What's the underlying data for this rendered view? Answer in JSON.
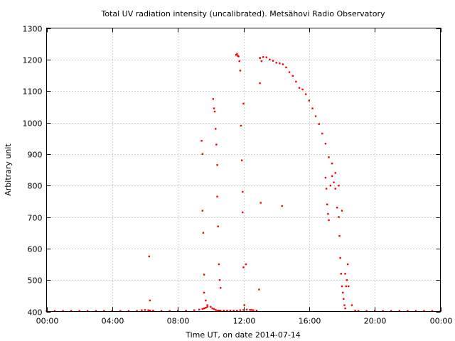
{
  "chart_data": {
    "type": "scatter",
    "title": "Total UV radiation intensity (uncalibrated). Metsähovi Radio Observatory",
    "xlabel": "Time UT, on date 2014-07-14",
    "ylabel": "Arbitrary unit",
    "xlim": [
      0,
      24
    ],
    "ylim": [
      400,
      1300
    ],
    "x_ticks": [
      {
        "value": 0,
        "label": "00:00"
      },
      {
        "value": 4,
        "label": "04:00"
      },
      {
        "value": 8,
        "label": "08:00"
      },
      {
        "value": 12,
        "label": "12:00"
      },
      {
        "value": 16,
        "label": "16:00"
      },
      {
        "value": 20,
        "label": "20:00"
      },
      {
        "value": 24,
        "label": "00:00"
      }
    ],
    "y_ticks": [
      400,
      500,
      600,
      700,
      800,
      900,
      1000,
      1100,
      1200,
      1300
    ],
    "grid": true,
    "marker_color": "#ff0000",
    "series": [
      {
        "x": [
          0,
          0.5,
          1,
          1.5,
          2,
          2.5,
          3,
          3.5,
          4,
          4.5,
          5,
          5.5,
          5.8,
          6.0,
          6.2,
          6.3,
          6.5,
          7,
          7.5,
          8,
          8.5,
          9,
          9.3,
          9.5,
          9.6,
          9.7,
          9.8,
          10.0,
          10.1,
          10.2,
          10.3,
          10.4,
          10.5,
          10.6,
          10.8,
          11.0,
          11.2,
          11.4,
          11.6,
          11.8,
          12.0,
          12.2,
          12.4,
          12.6,
          12.8,
          13.0,
          13.2,
          13.4,
          13.6,
          13.8,
          14.0,
          14.2,
          14.4,
          14.6,
          14.8,
          15.0,
          15.2,
          15.4,
          15.6,
          15.8,
          16.0,
          16.2,
          16.4,
          16.6,
          16.8,
          17.0,
          17.2,
          17.4,
          17.6,
          17.8,
          18.0,
          18.2,
          18.4,
          18.6,
          18.8,
          19,
          19.5,
          20,
          20.5,
          21,
          21.5,
          22,
          22.5,
          23,
          23.5,
          24,
          6.25,
          6.3,
          9.45,
          9.5,
          9.5,
          9.55,
          9.6,
          9.6,
          9.7,
          9.8,
          10.15,
          10.2,
          10.25,
          10.3,
          10.35,
          10.4,
          10.4,
          10.45,
          10.5,
          10.55,
          10.6,
          11.55,
          11.6,
          11.65,
          11.7,
          11.75,
          11.8,
          11.85,
          11.9,
          11.95,
          11.95,
          12.0,
          12.0,
          12.05,
          12.15,
          12.5,
          12.95,
          13.0,
          13.0,
          13.05,
          13.1,
          14.35,
          17.0,
          17.05,
          17.1,
          17.15,
          17.2,
          17.3,
          17.4,
          17.5,
          17.6,
          17.7,
          17.8,
          17.85,
          17.9,
          17.95,
          18.0,
          18.05,
          18.1,
          18.15,
          18.2,
          18.25,
          18.3,
          18.35
        ],
        "y": [
          402,
          402,
          402,
          402,
          402,
          402,
          402,
          402,
          402,
          402,
          402,
          402,
          404,
          405,
          404,
          403,
          403,
          402,
          402,
          403,
          403,
          404,
          406,
          408,
          410,
          412,
          415,
          415,
          410,
          408,
          405,
          403,
          403,
          403,
          403,
          403,
          403,
          403,
          403,
          404,
          405,
          406,
          405,
          404,
          403,
          1205,
          1208,
          1207,
          1200,
          1196,
          1190,
          1188,
          1185,
          1175,
          1160,
          1148,
          1130,
          1110,
          1105,
          1090,
          1070,
          1045,
          1020,
          995,
          965,
          933,
          890,
          870,
          840,
          800,
          720,
          520,
          480,
          420,
          403,
          402,
          402,
          402,
          402,
          402,
          402,
          402,
          402,
          402,
          402,
          402,
          575,
          435,
          942,
          900,
          720,
          650,
          517,
          460,
          435,
          420,
          1075,
          1045,
          1035,
          980,
          930,
          865,
          765,
          670,
          550,
          500,
          475,
          1215,
          1218,
          1212,
          1210,
          1195,
          1165,
          990,
          880,
          780,
          715,
          1060,
          540,
          420,
          550,
          405,
          470,
          1205,
          1125,
          745,
          1195,
          735,
          825,
          790,
          740,
          710,
          690,
          800,
          830,
          810,
          790,
          730,
          700,
          640,
          570,
          520,
          480,
          460,
          440,
          420,
          410,
          480,
          500,
          550
        ]
      }
    ]
  }
}
